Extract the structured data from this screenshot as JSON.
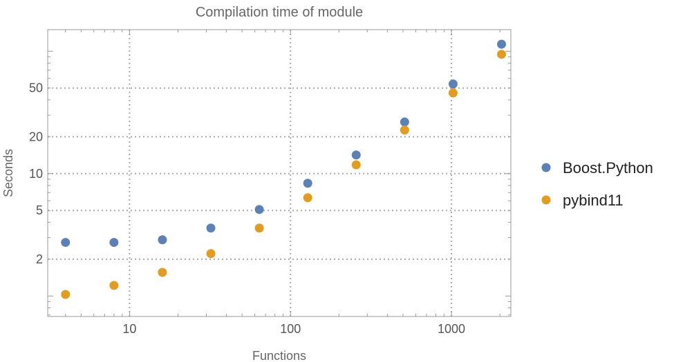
{
  "chart_data": {
    "type": "scatter",
    "title": "Compilation time of module",
    "xlabel": "Functions",
    "ylabel": "Seconds",
    "xscale": "log",
    "yscale": "log",
    "xlim": [
      3.1,
      2340
    ],
    "ylim": [
      0.68,
      150
    ],
    "xticks": [
      {
        "value": 10,
        "label": "10"
      },
      {
        "value": 100,
        "label": "100"
      },
      {
        "value": 1000,
        "label": "1000"
      }
    ],
    "yticks": [
      {
        "value": 2,
        "label": "2"
      },
      {
        "value": 5,
        "label": "5"
      },
      {
        "value": 10,
        "label": "10"
      },
      {
        "value": 20,
        "label": "20"
      },
      {
        "value": 50,
        "label": "50"
      }
    ],
    "grid": true,
    "legend_position": "right",
    "x": [
      4,
      8,
      16,
      32,
      64,
      128,
      256,
      512,
      1024,
      2048
    ],
    "series": [
      {
        "name": "Boost.Python",
        "color": "#5E81B5",
        "values": [
          2.74,
          2.74,
          2.88,
          3.59,
          5.09,
          8.34,
          14.2,
          26.4,
          54,
          114
        ]
      },
      {
        "name": "pybind11",
        "color": "#E19C24",
        "values": [
          1.03,
          1.22,
          1.56,
          2.22,
          3.59,
          6.35,
          11.8,
          22.7,
          45.6,
          94.4
        ]
      }
    ]
  }
}
